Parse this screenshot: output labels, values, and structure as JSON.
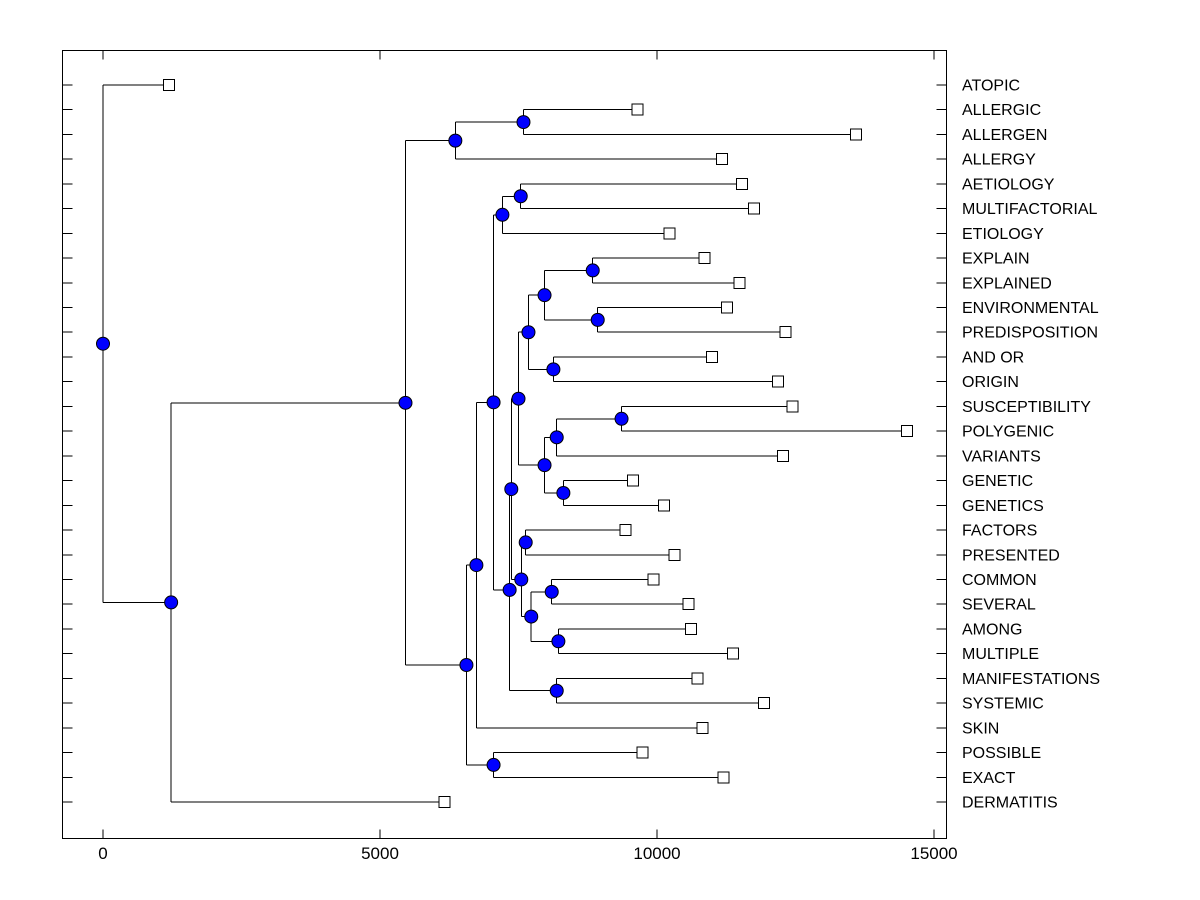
{
  "figure": {
    "background": "#ffffff",
    "plot_background": "#ffffff",
    "box_color": "#000000"
  },
  "style": {
    "branch_color": "#000000",
    "branch_width": 1,
    "internal_node_fill": "#0000ff",
    "internal_node_edge": "#000000",
    "leaf_marker_fill": "#ffffff",
    "leaf_marker_edge": "#000000"
  },
  "axis": {
    "x_ticks": [
      0,
      5000,
      10000,
      15000
    ],
    "x_tick_labels": [
      "0",
      "5000",
      "10000",
      "15000"
    ]
  },
  "chart_data": {
    "type": "dendrogram",
    "orientation": "horizontal",
    "xlim": [
      -740,
      15230
    ],
    "x_ticks": [
      0,
      5000,
      10000,
      15000
    ],
    "leaf_marker": "open-square",
    "internal_marker": "filled-circle",
    "leaves": [
      {
        "label": "ATOPIC",
        "x": 1190
      },
      {
        "label": "ALLERGIC",
        "x": 9650
      },
      {
        "label": "ALLERGEN",
        "x": 13590
      },
      {
        "label": "ALLERGY",
        "x": 11170
      },
      {
        "label": "AETIOLOGY",
        "x": 11530
      },
      {
        "label": "MULTIFACTORIAL",
        "x": 11750
      },
      {
        "label": "ETIOLOGY",
        "x": 10230
      },
      {
        "label": "EXPLAIN",
        "x": 10860
      },
      {
        "label": "EXPLAINED",
        "x": 11490
      },
      {
        "label": "ENVIRONMENTAL",
        "x": 11260
      },
      {
        "label": "PREDISPOSITION",
        "x": 12320
      },
      {
        "label": "AND OR",
        "x": 10990
      },
      {
        "label": "ORIGIN",
        "x": 12180
      },
      {
        "label": "SUSCEPTIBILITY",
        "x": 12450
      },
      {
        "label": "POLYGENIC",
        "x": 14510
      },
      {
        "label": "VARIANTS",
        "x": 12270
      },
      {
        "label": "GENETIC",
        "x": 9570
      },
      {
        "label": "GENETICS",
        "x": 10130
      },
      {
        "label": "FACTORS",
        "x": 9430
      },
      {
        "label": "PRESENTED",
        "x": 10320
      },
      {
        "label": "COMMON",
        "x": 9940
      },
      {
        "label": "SEVERAL",
        "x": 10570
      },
      {
        "label": "AMONG",
        "x": 10610
      },
      {
        "label": "MULTIPLE",
        "x": 11370
      },
      {
        "label": "MANIFESTATIONS",
        "x": 10730
      },
      {
        "label": "SYSTEMIC",
        "x": 11930
      },
      {
        "label": "SKIN",
        "x": 10820
      },
      {
        "label": "POSSIBLE",
        "x": 9740
      },
      {
        "label": "EXACT",
        "x": 11200
      },
      {
        "label": "DERMATITIS",
        "x": 6160
      }
    ],
    "nodes": [
      {
        "id": "root",
        "x": 0,
        "children": [
          "ATOPIC",
          "b"
        ]
      },
      {
        "id": "b",
        "x": 1230,
        "children": [
          "c",
          "DERMATITIS"
        ]
      },
      {
        "id": "c",
        "x": 5460,
        "children": [
          "e",
          "n20"
        ]
      },
      {
        "id": "e",
        "x": 6360,
        "children": [
          "d",
          "ALLERGY"
        ]
      },
      {
        "id": "d",
        "x": 7590,
        "children": [
          "ALLERGIC",
          "ALLERGEN"
        ]
      },
      {
        "id": "n20",
        "x": 6560,
        "children": [
          "n14",
          "n22"
        ]
      },
      {
        "id": "n14",
        "x": 6740,
        "children": [
          "n6",
          "SKIN"
        ]
      },
      {
        "id": "n22",
        "x": 7050,
        "children": [
          "POSSIBLE",
          "EXACT"
        ]
      },
      {
        "id": "n6",
        "x": 7050,
        "children": [
          "g",
          "n16"
        ]
      },
      {
        "id": "g",
        "x": 7210,
        "children": [
          "f",
          "ETIOLOGY"
        ]
      },
      {
        "id": "f",
        "x": 7540,
        "children": [
          "AETIOLOGY",
          "MULTIFACTORIAL"
        ]
      },
      {
        "id": "n16",
        "x": 7340,
        "children": [
          "n12",
          "n21"
        ]
      },
      {
        "id": "n12",
        "x": 7370,
        "children": [
          "n7",
          "n15"
        ]
      },
      {
        "id": "n7",
        "x": 7500,
        "children": [
          "n4",
          "n10"
        ]
      },
      {
        "id": "n4",
        "x": 7680,
        "children": [
          "n2",
          "n5"
        ]
      },
      {
        "id": "n2",
        "x": 7970,
        "children": [
          "n1",
          "n3"
        ]
      },
      {
        "id": "n1",
        "x": 8840,
        "children": [
          "EXPLAIN",
          "EXPLAINED"
        ]
      },
      {
        "id": "n3",
        "x": 8930,
        "children": [
          "ENVIRONMENTAL",
          "PREDISPOSITION"
        ]
      },
      {
        "id": "n5",
        "x": 8130,
        "children": [
          "AND OR",
          "ORIGIN"
        ]
      },
      {
        "id": "n10",
        "x": 7970,
        "children": [
          "n9",
          "n11"
        ]
      },
      {
        "id": "n9",
        "x": 8190,
        "children": [
          "n8",
          "VARIANTS"
        ]
      },
      {
        "id": "n8",
        "x": 9360,
        "children": [
          "SUSCEPTIBILITY",
          "POLYGENIC"
        ]
      },
      {
        "id": "n11",
        "x": 8310,
        "children": [
          "GENETIC",
          "GENETICS"
        ]
      },
      {
        "id": "n15",
        "x": 7550,
        "children": [
          "n13",
          "n18"
        ]
      },
      {
        "id": "n13",
        "x": 7630,
        "children": [
          "FACTORS",
          "PRESENTED"
        ]
      },
      {
        "id": "n18",
        "x": 7730,
        "children": [
          "n17",
          "n19"
        ]
      },
      {
        "id": "n17",
        "x": 8100,
        "children": [
          "COMMON",
          "SEVERAL"
        ]
      },
      {
        "id": "n19",
        "x": 8220,
        "children": [
          "AMONG",
          "MULTIPLE"
        ]
      },
      {
        "id": "n21",
        "x": 8190,
        "children": [
          "MANIFESTATIONS",
          "SYSTEMIC"
        ]
      }
    ]
  }
}
